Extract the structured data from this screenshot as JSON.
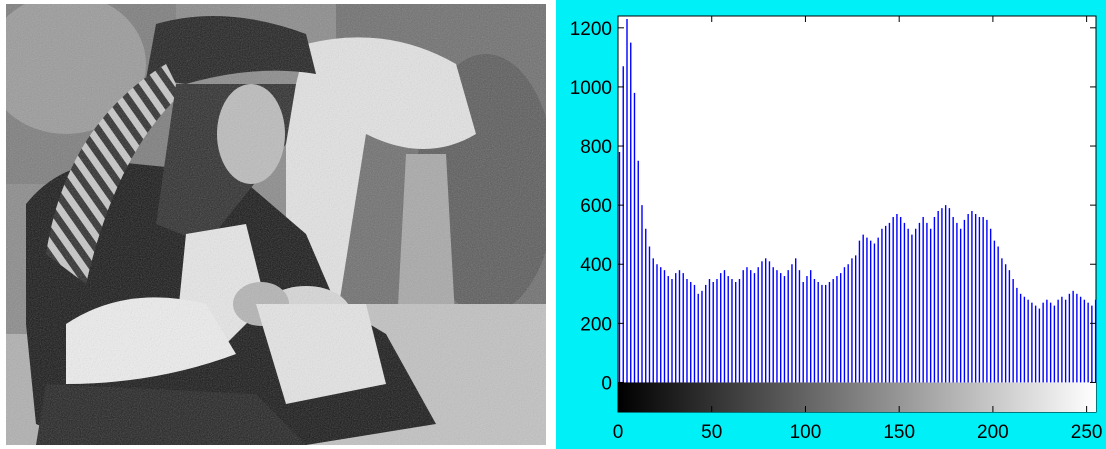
{
  "photo": {
    "subject": "grayscale photograph of a person in a feathered pirate hat holding a small object",
    "tone": "grayscale"
  },
  "figure": {
    "background_color": "#00f0f8",
    "bar_color": "#0000ff",
    "colorbar": "grayscale gradient black to white"
  },
  "chart_data": {
    "type": "bar",
    "title": "",
    "xlabel": "",
    "ylabel": "",
    "xlim": [
      0,
      255
    ],
    "ylim": [
      -100,
      1240
    ],
    "x_ticks": [
      0,
      50,
      100,
      150,
      200,
      250
    ],
    "y_ticks": [
      0,
      200,
      400,
      600,
      800,
      1000,
      1200
    ],
    "grid": false,
    "bin_width": 2,
    "bin_start": 0,
    "values": [
      780,
      1070,
      1230,
      1150,
      980,
      750,
      600,
      520,
      460,
      420,
      400,
      390,
      380,
      360,
      350,
      370,
      380,
      370,
      350,
      340,
      330,
      300,
      310,
      330,
      350,
      340,
      350,
      370,
      380,
      360,
      350,
      340,
      350,
      380,
      390,
      380,
      370,
      390,
      410,
      420,
      410,
      390,
      380,
      370,
      360,
      380,
      400,
      420,
      380,
      340,
      360,
      380,
      350,
      340,
      330,
      330,
      340,
      350,
      360,
      370,
      390,
      400,
      420,
      430,
      480,
      500,
      490,
      480,
      470,
      490,
      520,
      530,
      540,
      560,
      570,
      560,
      540,
      520,
      500,
      520,
      540,
      560,
      540,
      520,
      560,
      580,
      590,
      600,
      590,
      560,
      540,
      520,
      550,
      570,
      580,
      570,
      560,
      560,
      550,
      520,
      480,
      460,
      420,
      400,
      380,
      350,
      320,
      300,
      290,
      280,
      270,
      260,
      250,
      270,
      280,
      270,
      260,
      280,
      290,
      280,
      300,
      310,
      300,
      290,
      280,
      270,
      260,
      280
    ]
  }
}
